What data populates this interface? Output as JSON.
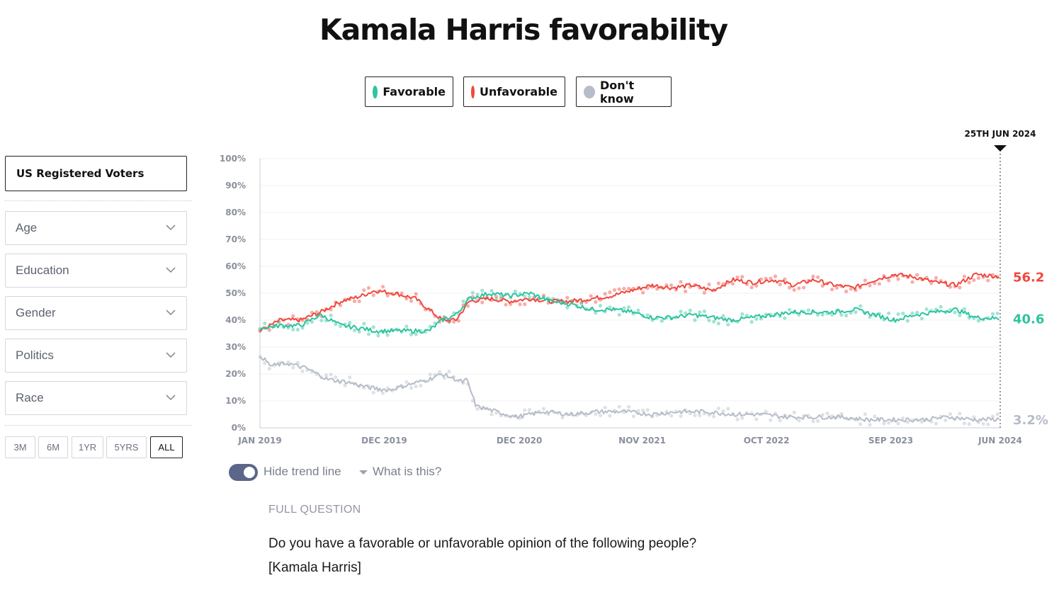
{
  "title": "Kamala Harris favorability",
  "legend": [
    {
      "label": "Favorable",
      "color": "#2ec4a0"
    },
    {
      "label": "Unfavorable",
      "color": "#f0483e"
    },
    {
      "label": "Don't know",
      "color": "#b6bcc9"
    }
  ],
  "sidebar": {
    "population": "US Registered Voters",
    "filters": [
      "Age",
      "Education",
      "Gender",
      "Politics",
      "Race"
    ],
    "ranges": [
      "3M",
      "6M",
      "1YR",
      "5YRS",
      "ALL"
    ],
    "active_range": "ALL"
  },
  "controls": {
    "hide_trend_label": "Hide trend line",
    "hide_trend_on": true,
    "what_is_this": "What is this?"
  },
  "full_question": {
    "heading": "FULL QUESTION",
    "line1": "Do you have a favorable or unfavorable opinion of the following people?",
    "line2": "[Kamala Harris]"
  },
  "chart_data": {
    "type": "line",
    "title": "Kamala Harris favorability",
    "date_marker": "25TH JUN 2024",
    "ylim": [
      0,
      100
    ],
    "ylabel": "",
    "xlabel": "",
    "yticks": [
      "0%",
      "10%",
      "20%",
      "30%",
      "40%",
      "50%",
      "60%",
      "70%",
      "80%",
      "90%",
      "100%"
    ],
    "xticks": [
      {
        "label": "JAN 2019",
        "date": 2019.0
      },
      {
        "label": "DEC 2019",
        "date": 2019.92
      },
      {
        "label": "DEC 2020",
        "date": 2020.92
      },
      {
        "label": "NOV 2021",
        "date": 2021.83
      },
      {
        "label": "OCT 2022",
        "date": 2022.75
      },
      {
        "label": "SEP 2023",
        "date": 2023.67
      },
      {
        "label": "JUN 2024",
        "date": 2024.48
      }
    ],
    "series": [
      {
        "name": "Unfavorable",
        "color": "#f0483e",
        "end_label": "56.2",
        "x": [
          2019.0,
          2019.15,
          2019.3,
          2019.45,
          2019.6,
          2019.75,
          2019.85,
          2020.0,
          2020.15,
          2020.25,
          2020.35,
          2020.45,
          2020.55,
          2020.7,
          2020.85,
          2021.0,
          2021.15,
          2021.3,
          2021.45,
          2021.6,
          2021.75,
          2021.9,
          2022.05,
          2022.2,
          2022.35,
          2022.5,
          2022.65,
          2022.8,
          2022.95,
          2023.1,
          2023.25,
          2023.4,
          2023.55,
          2023.7,
          2023.85,
          2024.0,
          2024.15,
          2024.3,
          2024.48
        ],
        "values": [
          36,
          40,
          40,
          43,
          47,
          49,
          51,
          50,
          48,
          44,
          40,
          40,
          47,
          48,
          47,
          48,
          47,
          47,
          48,
          49,
          51,
          53,
          52,
          53,
          51,
          55,
          54,
          55,
          53,
          55,
          53,
          52,
          55,
          57,
          56,
          54,
          53,
          57,
          56.2
        ]
      },
      {
        "name": "Favorable",
        "color": "#2ec4a0",
        "end_label": "40.6",
        "x": [
          2019.0,
          2019.15,
          2019.3,
          2019.45,
          2019.6,
          2019.75,
          2019.85,
          2020.0,
          2020.15,
          2020.25,
          2020.35,
          2020.45,
          2020.55,
          2020.7,
          2020.85,
          2021.0,
          2021.15,
          2021.3,
          2021.45,
          2021.6,
          2021.75,
          2021.9,
          2022.05,
          2022.2,
          2022.35,
          2022.5,
          2022.65,
          2022.8,
          2022.95,
          2023.1,
          2023.25,
          2023.4,
          2023.55,
          2023.7,
          2023.85,
          2024.0,
          2024.15,
          2024.3,
          2024.48
        ],
        "values": [
          37,
          38,
          38,
          42,
          38,
          37,
          36,
          36,
          36,
          36,
          40,
          42,
          48,
          50,
          49,
          50,
          47,
          46,
          44,
          44,
          43,
          41,
          41,
          42,
          41,
          40,
          41,
          42,
          43,
          43,
          43,
          44,
          42,
          40,
          42,
          43,
          44,
          41,
          40.6
        ]
      },
      {
        "name": "Don't know",
        "color": "#b6bcc9",
        "end_label": "3.2%",
        "x": [
          2019.0,
          2019.08,
          2019.2,
          2019.35,
          2019.5,
          2019.65,
          2019.8,
          2019.95,
          2020.1,
          2020.25,
          2020.35,
          2020.5,
          2020.53,
          2020.6,
          2020.75,
          2020.9,
          2021.1,
          2021.3,
          2021.5,
          2021.7,
          2021.9,
          2022.1,
          2022.3,
          2022.5,
          2022.7,
          2022.9,
          2023.1,
          2023.3,
          2023.5,
          2023.7,
          2023.9,
          2024.1,
          2024.3,
          2024.48
        ],
        "values": [
          27,
          23,
          24,
          22,
          18,
          17,
          15,
          14,
          16,
          18,
          20,
          17,
          18,
          8,
          6,
          4,
          6,
          5,
          6,
          6,
          5,
          6,
          6,
          5,
          5,
          4,
          4,
          4,
          3,
          3,
          3,
          4,
          3,
          3.2
        ]
      }
    ]
  }
}
